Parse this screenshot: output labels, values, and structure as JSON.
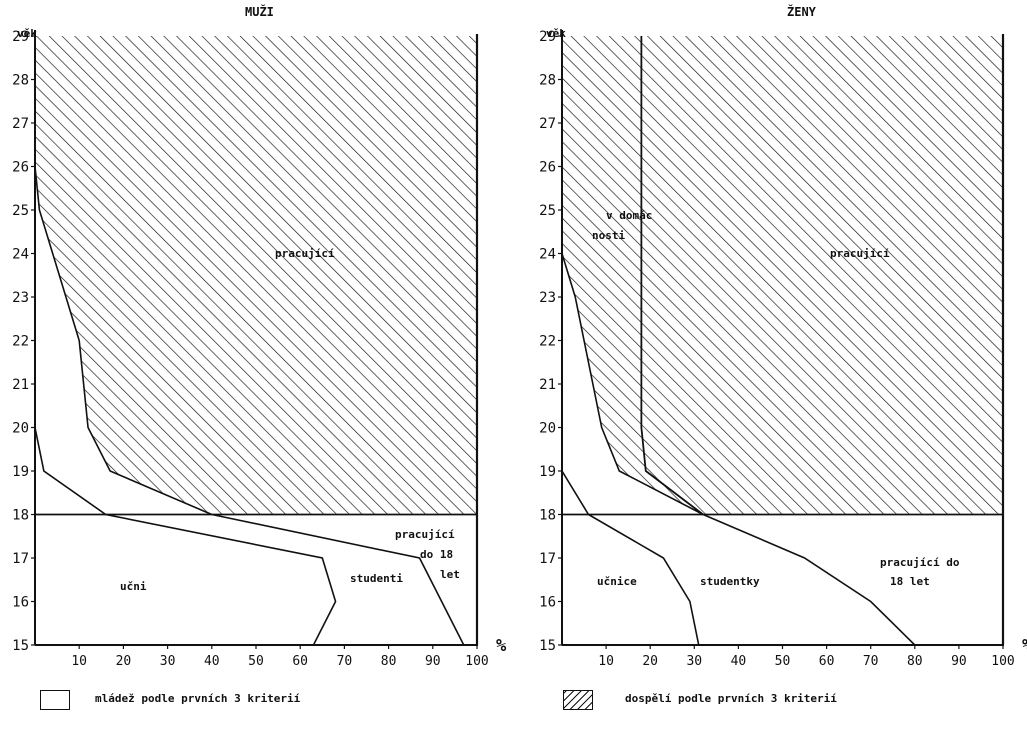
{
  "chart_data": [
    {
      "type": "area",
      "title": "MUŽI",
      "ylabel": "věk",
      "xlabel": "%",
      "xlim": [
        0,
        100
      ],
      "ylim": [
        15,
        29
      ],
      "x_ticks": [
        "10",
        "20",
        "30",
        "40",
        "50",
        "60",
        "70",
        "80",
        "90",
        "100"
      ],
      "y_ticks": [
        "15",
        "16",
        "17",
        "18",
        "19",
        "20",
        "21",
        "22",
        "23",
        "24",
        "25",
        "26",
        "27",
        "28",
        "29"
      ],
      "adult_boundary": [
        {
          "age": 18,
          "x": 40
        },
        {
          "age": 19,
          "x": 17
        },
        {
          "age": 20,
          "x": 12
        },
        {
          "age": 21,
          "x": 11
        },
        {
          "age": 22,
          "x": 10
        },
        {
          "age": 23,
          "x": 7
        },
        {
          "age": 24,
          "x": 4
        },
        {
          "age": 25,
          "x": 1
        },
        {
          "age": 26,
          "x": 0
        },
        {
          "age": 29,
          "x": 0
        }
      ],
      "series": [
        {
          "name": "učni",
          "points": [
            {
              "age": 15,
              "x": 63
            },
            {
              "age": 16,
              "x": 68
            },
            {
              "age": 17,
              "x": 65
            },
            {
              "age": 18,
              "x": 16
            },
            {
              "age": 19,
              "x": 2
            },
            {
              "age": 20,
              "x": 0
            }
          ]
        },
        {
          "name": "studenti",
          "points": [
            {
              "age": 15,
              "x": 97
            },
            {
              "age": 17,
              "x": 87
            },
            {
              "age": 18,
              "x": 40
            }
          ]
        },
        {
          "name": "pracující do 18 let"
        },
        {
          "name": "pracující"
        }
      ],
      "labels": {
        "title": "MUŽI",
        "axis_y": "věk",
        "axis_x": "%",
        "learners": "učni",
        "students": "studenti",
        "working_u18_a": "pracující",
        "working_u18_b": "do 18",
        "working_u18_c": "let",
        "working": "pracující"
      }
    },
    {
      "type": "area",
      "title": "ŽENY",
      "ylabel": "věk",
      "xlabel": "%",
      "xlim": [
        0,
        100
      ],
      "ylim": [
        15,
        29
      ],
      "x_ticks": [
        "10",
        "20",
        "30",
        "40",
        "50",
        "60",
        "70",
        "80",
        "90",
        "100"
      ],
      "y_ticks": [
        "15",
        "16",
        "17",
        "18",
        "19",
        "20",
        "21",
        "22",
        "23",
        "24",
        "25",
        "26",
        "27",
        "28",
        "29"
      ],
      "adult_boundary": [
        {
          "age": 18,
          "x": 32
        },
        {
          "age": 19,
          "x": 13
        },
        {
          "age": 20,
          "x": 9
        },
        {
          "age": 21,
          "x": 7
        },
        {
          "age": 22,
          "x": 5
        },
        {
          "age": 23,
          "x": 3
        },
        {
          "age": 24,
          "x": 0
        },
        {
          "age": 29,
          "x": 0
        }
      ],
      "housework_boundary": [
        {
          "age": 18,
          "x": 32
        },
        {
          "age": 19,
          "x": 19
        },
        {
          "age": 20,
          "x": 18
        },
        {
          "age": 29,
          "x": 18
        }
      ],
      "series": [
        {
          "name": "učnice",
          "points": [
            {
              "age": 15,
              "x": 31
            },
            {
              "age": 16,
              "x": 29
            },
            {
              "age": 17,
              "x": 23
            },
            {
              "age": 18,
              "x": 6
            },
            {
              "age": 19,
              "x": 0
            }
          ]
        },
        {
          "name": "studentky",
          "points": [
            {
              "age": 15,
              "x": 80
            },
            {
              "age": 16,
              "x": 70
            },
            {
              "age": 17,
              "x": 55
            },
            {
              "age": 18,
              "x": 32
            }
          ]
        },
        {
          "name": "pracující do 18 let"
        },
        {
          "name": "v domácnosti"
        },
        {
          "name": "pracující"
        }
      ],
      "labels": {
        "title": "ŽENY",
        "axis_y": "věk",
        "axis_x": "%",
        "learners": "učnice",
        "students": "studentky",
        "working_u18_a": "pracující do",
        "working_u18_b": "18 let",
        "housework_a": "v domác",
        "housework_b": "nosti",
        "working": "pracující"
      }
    }
  ],
  "legend": {
    "youth_label": "mládež podle prvních 3 kriterií",
    "adult_label": "dospělí podle prvních 3 kriterií"
  },
  "colors": {
    "ink": "#111111",
    "background": "#ffffff"
  }
}
